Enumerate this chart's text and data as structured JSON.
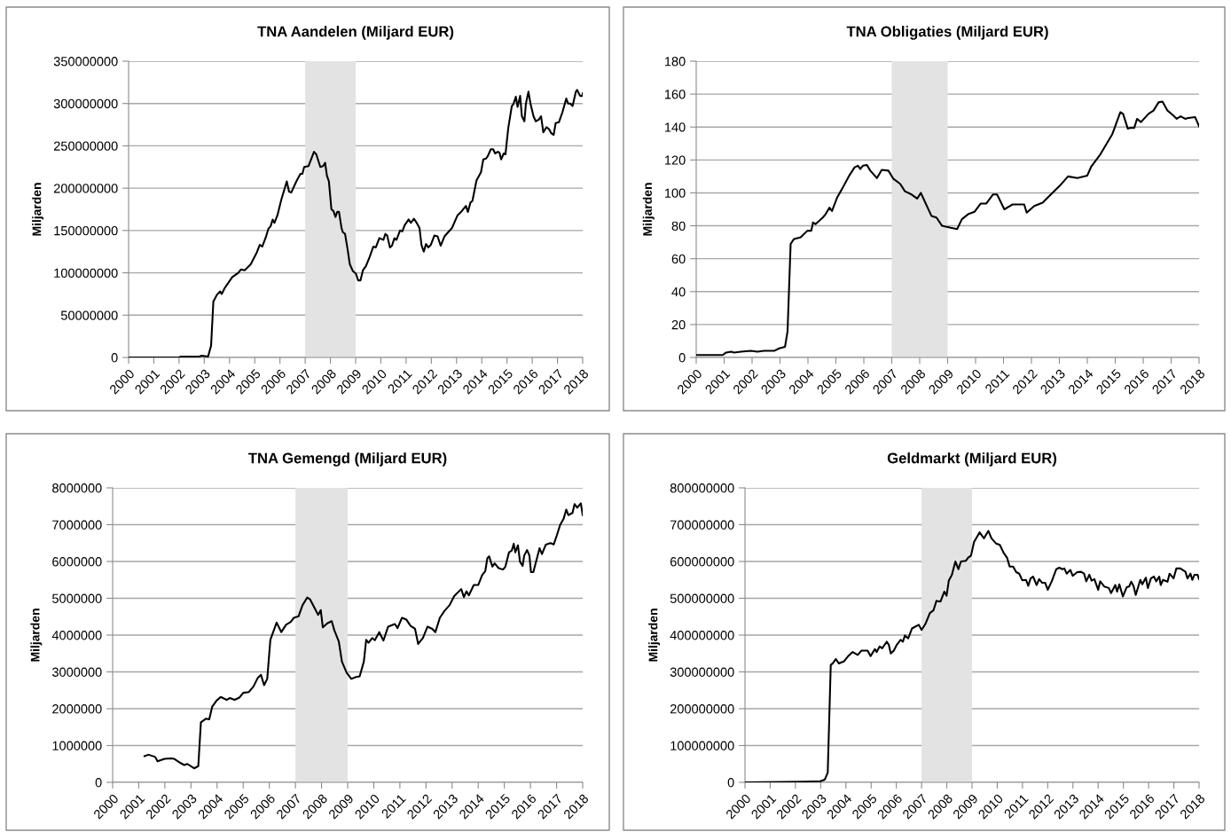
{
  "chart_data": [
    {
      "type": "line",
      "title": "TNA Aandelen (Miljard EUR)",
      "ylabel": "Miljarden",
      "color": "#000000",
      "grid": "y",
      "xlim": [
        2000,
        2018
      ],
      "xticks": [
        2000,
        2001,
        2002,
        2003,
        2004,
        2005,
        2006,
        2007,
        2008,
        2009,
        2010,
        2011,
        2012,
        2013,
        2014,
        2015,
        2016,
        2017,
        2018
      ],
      "ylim": [
        0,
        350000000
      ],
      "yticks": [
        0,
        50000000,
        100000000,
        150000000,
        200000000,
        250000000,
        300000000,
        350000000
      ],
      "bands": [
        {
          "axis": "x",
          "from": 2007,
          "to": 2009,
          "color": "#e3e3e3"
        }
      ],
      "x": [
        2000,
        2002,
        2002.06,
        2002.8,
        2002.9,
        2003.15,
        2003.27,
        2003.36,
        2003.5,
        2003.63,
        2003.69,
        2003.81,
        2004.11,
        2004.35,
        2004.45,
        2004.6,
        2004.84,
        2005.08,
        2005.2,
        2005.3,
        2005.44,
        2005.54,
        2005.63,
        2005.71,
        2005.78,
        2005.9,
        2006.05,
        2006.27,
        2006.36,
        2006.45,
        2006.65,
        2006.81,
        2006.89,
        2006.96,
        2007.13,
        2007.35,
        2007.44,
        2007.6,
        2007.71,
        2007.79,
        2007.86,
        2007.94,
        2008.04,
        2008.12,
        2008.2,
        2008.27,
        2008.34,
        2008.44,
        2008.49,
        2008.58,
        2008.68,
        2008.77,
        2008.89,
        2009.01,
        2009.1,
        2009.19,
        2009.29,
        2009.41,
        2009.56,
        2009.7,
        2009.8,
        2009.94,
        2010.1,
        2010.18,
        2010.25,
        2010.36,
        2010.44,
        2010.54,
        2010.62,
        2010.76,
        2010.85,
        2010.94,
        2011.1,
        2011.19,
        2011.31,
        2011.4,
        2011.53,
        2011.61,
        2011.7,
        2011.79,
        2011.88,
        2011.98,
        2012.12,
        2012.25,
        2012.37,
        2012.52,
        2012.82,
        2013.04,
        2013.21,
        2013.37,
        2013.45,
        2013.55,
        2013.63,
        2013.79,
        2013.97,
        2014.06,
        2014.17,
        2014.24,
        2014.36,
        2014.45,
        2014.53,
        2014.63,
        2014.7,
        2014.77,
        2014.87,
        2014.94,
        2015.05,
        2015.19,
        2015.25,
        2015.35,
        2015.42,
        2015.52,
        2015.59,
        2015.69,
        2015.75,
        2015.85,
        2015.93,
        2016.05,
        2016.14,
        2016.26,
        2016.35,
        2016.44,
        2016.56,
        2016.66,
        2016.75,
        2016.85,
        2016.93,
        2017.06,
        2017.2,
        2017.35,
        2017.42,
        2017.51,
        2017.6,
        2017.73,
        2017.78,
        2017.9,
        2017.99,
        2018
      ],
      "values": [
        0,
        0,
        1000000,
        1000000,
        2000000,
        1000000,
        14000000,
        66000000,
        74000000,
        78000000,
        75000000,
        82000000,
        95000000,
        100000000,
        104000000,
        103000000,
        110000000,
        124000000,
        133000000,
        131000000,
        142000000,
        152000000,
        155000000,
        163000000,
        159000000,
        168000000,
        186000000,
        208000000,
        196000000,
        195000000,
        208000000,
        217000000,
        217000000,
        225000000,
        226000000,
        243000000,
        240000000,
        225000000,
        226000000,
        230000000,
        215000000,
        208000000,
        175000000,
        173000000,
        166000000,
        172000000,
        172000000,
        153000000,
        148000000,
        146000000,
        128000000,
        110000000,
        102000000,
        99000000,
        91000000,
        91000000,
        103000000,
        108000000,
        119000000,
        131000000,
        130000000,
        141000000,
        139000000,
        146000000,
        144000000,
        130000000,
        132000000,
        141000000,
        139000000,
        150000000,
        149000000,
        156000000,
        163000000,
        159000000,
        164000000,
        160000000,
        153000000,
        133000000,
        125000000,
        134000000,
        130000000,
        133000000,
        144000000,
        143000000,
        132000000,
        143000000,
        153000000,
        168000000,
        173000000,
        179000000,
        172000000,
        183000000,
        185000000,
        209000000,
        219000000,
        234000000,
        235000000,
        238000000,
        246000000,
        246000000,
        241000000,
        243000000,
        242000000,
        234000000,
        241000000,
        240000000,
        271000000,
        297000000,
        299000000,
        308000000,
        296000000,
        309000000,
        285000000,
        279000000,
        300000000,
        314000000,
        300000000,
        285000000,
        279000000,
        281000000,
        285000000,
        266000000,
        272000000,
        270000000,
        265000000,
        263000000,
        277000000,
        278000000,
        290000000,
        306000000,
        300000000,
        300000000,
        297000000,
        314000000,
        316000000,
        309000000,
        309000000,
        312000000
      ]
    },
    {
      "type": "line",
      "title": "TNA Obligaties (Miljard EUR)",
      "ylabel": "Miljarden",
      "color": "#000000",
      "grid": "y",
      "xlim": [
        2000,
        2018
      ],
      "xticks": [
        2000,
        2001,
        2002,
        2003,
        2004,
        2005,
        2006,
        2007,
        2008,
        2009,
        2010,
        2011,
        2012,
        2013,
        2014,
        2015,
        2016,
        2017,
        2018
      ],
      "ylim": [
        0,
        180
      ],
      "yticks": [
        0,
        20,
        40,
        60,
        80,
        100,
        120,
        140,
        160,
        180
      ],
      "bands": [
        {
          "axis": "x",
          "from": 2007,
          "to": 2009,
          "color": "#e3e3e3"
        }
      ],
      "x": [
        2000,
        2000.95,
        2001.07,
        2001.25,
        2001.36,
        2001.6,
        2001.96,
        2002.19,
        2002.43,
        2002.79,
        2002.97,
        2003.18,
        2003.27,
        2003.38,
        2003.5,
        2003.74,
        2003.98,
        2004.12,
        2004.18,
        2004.27,
        2004.53,
        2004.63,
        2004.77,
        2004.86,
        2005.04,
        2005.24,
        2005.46,
        2005.67,
        2005.79,
        2005.87,
        2005.97,
        2006.11,
        2006.23,
        2006.47,
        2006.64,
        2006.88,
        2007.06,
        2007.3,
        2007.47,
        2007.71,
        2007.91,
        2008.04,
        2008.42,
        2008.6,
        2008.8,
        2009.07,
        2009.34,
        2009.51,
        2009.73,
        2009.96,
        2010.18,
        2010.38,
        2010.62,
        2010.77,
        2011.03,
        2011.33,
        2011.74,
        2011.83,
        2012.1,
        2012.4,
        2012.63,
        2013.05,
        2013.31,
        2013.64,
        2014,
        2014.14,
        2014.47,
        2014.89,
        2015.18,
        2015.28,
        2015.45,
        2015.54,
        2015.68,
        2015.78,
        2015.92,
        2016.19,
        2016.37,
        2016.55,
        2016.69,
        2016.87,
        2017.08,
        2017.2,
        2017.34,
        2017.5,
        2017.62,
        2017.86,
        2018
      ],
      "values": [
        1.5,
        1.5,
        3,
        3.5,
        3,
        3.5,
        4,
        3.5,
        4,
        4,
        5.5,
        6.5,
        16,
        69,
        72,
        73,
        77,
        77,
        82,
        81,
        85,
        87,
        91,
        89,
        97,
        103,
        110,
        115.5,
        116.5,
        114.5,
        116.5,
        117,
        113.5,
        109,
        114,
        113.5,
        108.5,
        105.5,
        101,
        99,
        96.5,
        100,
        86,
        85,
        80,
        79,
        78,
        84,
        87,
        88.5,
        93.5,
        93.5,
        99,
        99,
        90,
        93,
        93,
        88,
        92,
        94,
        98,
        105,
        110,
        109,
        110.5,
        116,
        123.5,
        135.5,
        149,
        148,
        139,
        139.5,
        139.5,
        145,
        143,
        148,
        150,
        155,
        155.5,
        150,
        147,
        145,
        146.5,
        145,
        145.5,
        146,
        140.5
      ]
    },
    {
      "type": "line",
      "title": "TNA Gemengd (Miljard EUR)",
      "ylabel": "Miljarden",
      "color": "#000000",
      "grid": "y",
      "xlim": [
        2000,
        2018
      ],
      "xticks": [
        2000,
        2001,
        2002,
        2003,
        2004,
        2005,
        2006,
        2007,
        2008,
        2009,
        2010,
        2011,
        2012,
        2013,
        2014,
        2015,
        2016,
        2017,
        2018
      ],
      "ylim": [
        0,
        8000000
      ],
      "yticks": [
        0,
        1000000,
        2000000,
        3000000,
        4000000,
        5000000,
        6000000,
        7000000,
        8000000
      ],
      "bands": [
        {
          "axis": "x",
          "from": 2007,
          "to": 2009,
          "color": "#e3e3e3"
        }
      ],
      "x": [
        2001.22,
        2001.38,
        2001.63,
        2001.72,
        2001.99,
        2002.23,
        2002.35,
        2002.59,
        2002.74,
        2002.86,
        2003.12,
        2003.28,
        2003.38,
        2003.58,
        2003.7,
        2003.81,
        2003.98,
        2004.14,
        2004.37,
        2004.49,
        2004.67,
        2004.85,
        2005.0,
        2005.21,
        2005.39,
        2005.56,
        2005.68,
        2005.8,
        2005.92,
        2006.04,
        2006.28,
        2006.46,
        2006.64,
        2006.82,
        2006.94,
        2007.12,
        2007.27,
        2007.45,
        2007.56,
        2007.65,
        2007.87,
        2007.97,
        2008.05,
        2008.22,
        2008.39,
        2008.49,
        2008.66,
        2008.78,
        2008.96,
        2009.14,
        2009.32,
        2009.46,
        2009.62,
        2009.71,
        2009.8,
        2009.94,
        2010.04,
        2010.21,
        2010.37,
        2010.55,
        2010.81,
        2010.91,
        2011.08,
        2011.25,
        2011.41,
        2011.58,
        2011.7,
        2011.88,
        2012.06,
        2012.24,
        2012.36,
        2012.53,
        2012.71,
        2012.9,
        2013.08,
        2013.35,
        2013.45,
        2013.55,
        2013.64,
        2013.83,
        2014.0,
        2014.15,
        2014.27,
        2014.35,
        2014.42,
        2014.54,
        2014.63,
        2014.78,
        2014.95,
        2015.04,
        2015.18,
        2015.28,
        2015.36,
        2015.42,
        2015.52,
        2015.6,
        2015.7,
        2015.76,
        2015.87,
        2015.96,
        2016.02,
        2016.11,
        2016.35,
        2016.44,
        2016.59,
        2016.77,
        2016.89,
        2017.01,
        2017.13,
        2017.27,
        2017.37,
        2017.45,
        2017.61,
        2017.69,
        2017.79,
        2017.93,
        2018
      ],
      "values": [
        710000,
        750000,
        690000,
        570000,
        640000,
        650000,
        640000,
        530000,
        470000,
        500000,
        380000,
        440000,
        1630000,
        1730000,
        1710000,
        2050000,
        2220000,
        2320000,
        2240000,
        2290000,
        2240000,
        2300000,
        2430000,
        2450000,
        2600000,
        2840000,
        2920000,
        2640000,
        2810000,
        3870000,
        4340000,
        4080000,
        4280000,
        4360000,
        4470000,
        4510000,
        4810000,
        5020000,
        4970000,
        4850000,
        4550000,
        4680000,
        4210000,
        4320000,
        4380000,
        4130000,
        3830000,
        3280000,
        2980000,
        2810000,
        2860000,
        2880000,
        3280000,
        3870000,
        3790000,
        3920000,
        3860000,
        4080000,
        3850000,
        4230000,
        4300000,
        4190000,
        4470000,
        4420000,
        4250000,
        4170000,
        3760000,
        3920000,
        4230000,
        4170000,
        4080000,
        4470000,
        4660000,
        4810000,
        5060000,
        5250000,
        5030000,
        5190000,
        5080000,
        5360000,
        5360000,
        5630000,
        5740000,
        6090000,
        6140000,
        5860000,
        5950000,
        5820000,
        5780000,
        5860000,
        6250000,
        6290000,
        6480000,
        6250000,
        6440000,
        5990000,
        5880000,
        6160000,
        6310000,
        6160000,
        5710000,
        5710000,
        6360000,
        6200000,
        6460000,
        6500000,
        6460000,
        6710000,
        6980000,
        7160000,
        7410000,
        7260000,
        7320000,
        7560000,
        7460000,
        7580000,
        7260000
      ]
    },
    {
      "type": "line",
      "title": "Geldmarkt (Miljard EUR)",
      "ylabel": "Miljarden",
      "color": "#000000",
      "grid": "y",
      "xlim": [
        2000,
        2018
      ],
      "xticks": [
        2000,
        2001,
        2002,
        2003,
        2004,
        2005,
        2006,
        2007,
        2008,
        2009,
        2010,
        2011,
        2012,
        2013,
        2014,
        2015,
        2016,
        2017,
        2018
      ],
      "ylim": [
        0,
        800000000
      ],
      "yticks": [
        0,
        100000000,
        200000000,
        300000000,
        400000000,
        500000000,
        600000000,
        700000000,
        800000000
      ],
      "bands": [
        {
          "axis": "x",
          "from": 2007,
          "to": 2009,
          "color": "#e3e3e3"
        }
      ],
      "x": [
        2000,
        2002.38,
        2002.98,
        2003.16,
        2003.28,
        2003.4,
        2003.48,
        2003.6,
        2003.72,
        2003.93,
        2004.08,
        2004.27,
        2004.47,
        2004.62,
        2004.86,
        2004.98,
        2005.15,
        2005.22,
        2005.34,
        2005.44,
        2005.62,
        2005.7,
        2005.78,
        2005.9,
        2006.02,
        2006.17,
        2006.26,
        2006.34,
        2006.47,
        2006.62,
        2006.89,
        2007.0,
        2007.15,
        2007.33,
        2007.47,
        2007.59,
        2007.75,
        2007.9,
        2007.99,
        2008.08,
        2008.2,
        2008.34,
        2008.46,
        2008.56,
        2008.76,
        2008.84,
        2008.96,
        2009.08,
        2009.3,
        2009.47,
        2009.65,
        2009.77,
        2009.95,
        2010.1,
        2010.25,
        2010.39,
        2010.49,
        2010.63,
        2010.75,
        2010.87,
        2010.99,
        2011.14,
        2011.23,
        2011.32,
        2011.42,
        2011.56,
        2011.66,
        2011.78,
        2011.9,
        2012.0,
        2012.16,
        2012.34,
        2012.46,
        2012.58,
        2012.66,
        2012.75,
        2012.9,
        2012.99,
        2013.17,
        2013.32,
        2013.44,
        2013.53,
        2013.65,
        2013.74,
        2013.85,
        2014.0,
        2014.08,
        2014.24,
        2014.42,
        2014.51,
        2014.68,
        2014.75,
        2014.84,
        2014.98,
        2015.13,
        2015.23,
        2015.31,
        2015.4,
        2015.49,
        2015.67,
        2015.75,
        2015.89,
        2015.97,
        2016.09,
        2016.21,
        2016.3,
        2016.42,
        2016.48,
        2016.57,
        2016.75,
        2016.83,
        2016.99,
        2017.1,
        2017.26,
        2017.46,
        2017.54,
        2017.66,
        2017.73,
        2017.82,
        2017.94,
        2018
      ],
      "values": [
        0,
        2000000,
        3000000,
        7000000,
        26000000,
        319000000,
        323000000,
        335000000,
        323000000,
        329000000,
        342000000,
        354000000,
        346000000,
        358000000,
        358000000,
        343000000,
        362000000,
        354000000,
        369000000,
        364000000,
        382000000,
        374000000,
        350000000,
        358000000,
        374000000,
        387000000,
        382000000,
        399000000,
        391000000,
        418000000,
        428000000,
        414000000,
        430000000,
        460000000,
        467000000,
        493000000,
        491000000,
        518000000,
        507000000,
        548000000,
        563000000,
        600000000,
        579000000,
        600000000,
        602000000,
        610000000,
        616000000,
        653000000,
        679000000,
        663000000,
        683000000,
        663000000,
        649000000,
        645000000,
        624000000,
        610000000,
        586000000,
        586000000,
        571000000,
        567000000,
        549000000,
        550000000,
        534000000,
        554000000,
        559000000,
        536000000,
        552000000,
        542000000,
        542000000,
        523000000,
        546000000,
        579000000,
        583000000,
        579000000,
        581000000,
        567000000,
        577000000,
        561000000,
        571000000,
        572000000,
        567000000,
        546000000,
        564000000,
        548000000,
        552000000,
        523000000,
        546000000,
        532000000,
        528000000,
        514000000,
        536000000,
        518000000,
        538000000,
        505000000,
        530000000,
        532000000,
        545000000,
        534000000,
        509000000,
        550000000,
        538000000,
        556000000,
        528000000,
        554000000,
        559000000,
        546000000,
        559000000,
        536000000,
        550000000,
        545000000,
        567000000,
        554000000,
        581000000,
        581000000,
        572000000,
        554000000,
        567000000,
        550000000,
        564000000,
        564000000,
        552000000
      ]
    }
  ]
}
